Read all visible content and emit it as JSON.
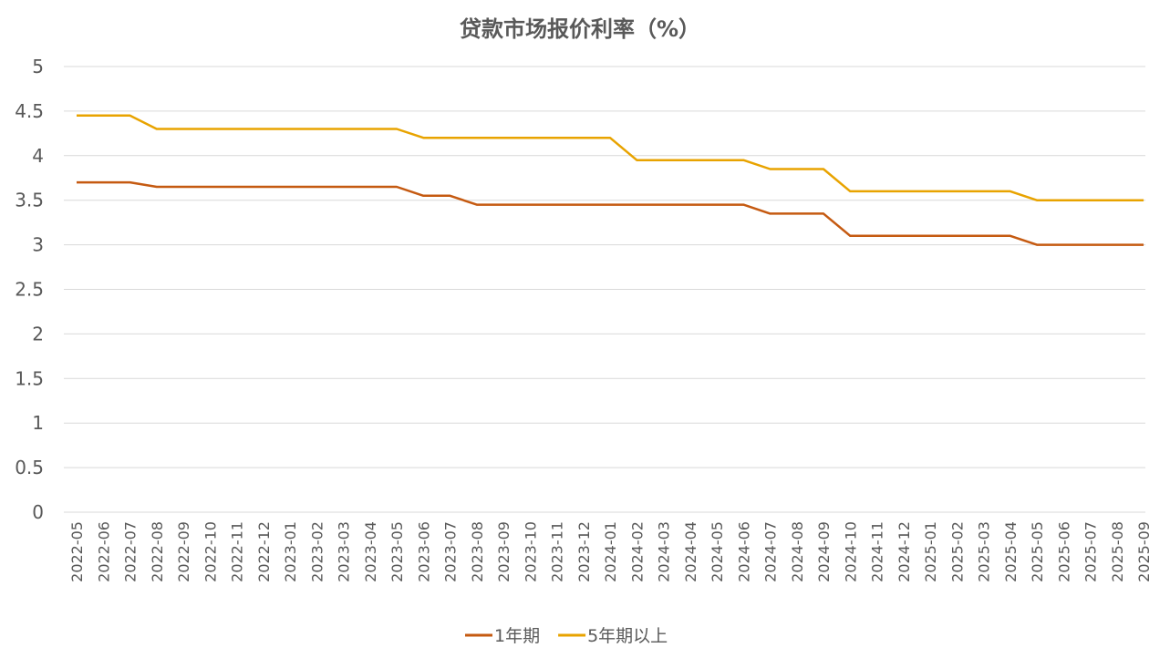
{
  "chart_data": {
    "type": "line",
    "title": "贷款市场报价利率（%）",
    "xlabel": "",
    "ylabel": "",
    "ylim": [
      0,
      5
    ],
    "yticks": [
      "0",
      "0.5",
      "1",
      "1.5",
      "2",
      "2.5",
      "3",
      "3.5",
      "4",
      "4.5",
      "5"
    ],
    "grid": true,
    "legend_position": "bottom",
    "x": [
      "2022-05",
      "2022-06",
      "2022-07",
      "2022-08",
      "2022-09",
      "2022-10",
      "2022-11",
      "2022-12",
      "2023-01",
      "2023-02",
      "2023-03",
      "2023-04",
      "2023-05",
      "2023-06",
      "2023-07",
      "2023-08",
      "2023-09",
      "2023-10",
      "2023-11",
      "2023-12",
      "2024-01",
      "2024-02",
      "2024-03",
      "2024-04",
      "2024-05",
      "2024-06",
      "2024-07",
      "2024-08",
      "2024-09",
      "2024-10",
      "2024-11",
      "2024-12",
      "2025-01",
      "2025-02",
      "2025-03",
      "2025-04",
      "2025-05",
      "2025-06",
      "2025-07",
      "2025-08",
      "2025-09"
    ],
    "series": [
      {
        "name": "1年期",
        "color": "#C55A11",
        "values": [
          3.7,
          3.7,
          3.7,
          3.65,
          3.65,
          3.65,
          3.65,
          3.65,
          3.65,
          3.65,
          3.65,
          3.65,
          3.65,
          3.55,
          3.55,
          3.45,
          3.45,
          3.45,
          3.45,
          3.45,
          3.45,
          3.45,
          3.45,
          3.45,
          3.45,
          3.45,
          3.35,
          3.35,
          3.35,
          3.1,
          3.1,
          3.1,
          3.1,
          3.1,
          3.1,
          3.1,
          3.0,
          3.0,
          3.0,
          3.0,
          3.0
        ]
      },
      {
        "name": "5年期以上",
        "color": "#E8A300",
        "values": [
          4.45,
          4.45,
          4.45,
          4.3,
          4.3,
          4.3,
          4.3,
          4.3,
          4.3,
          4.3,
          4.3,
          4.3,
          4.3,
          4.2,
          4.2,
          4.2,
          4.2,
          4.2,
          4.2,
          4.2,
          4.2,
          3.95,
          3.95,
          3.95,
          3.95,
          3.95,
          3.85,
          3.85,
          3.85,
          3.6,
          3.6,
          3.6,
          3.6,
          3.6,
          3.6,
          3.6,
          3.5,
          3.5,
          3.5,
          3.5,
          3.5
        ]
      }
    ]
  }
}
